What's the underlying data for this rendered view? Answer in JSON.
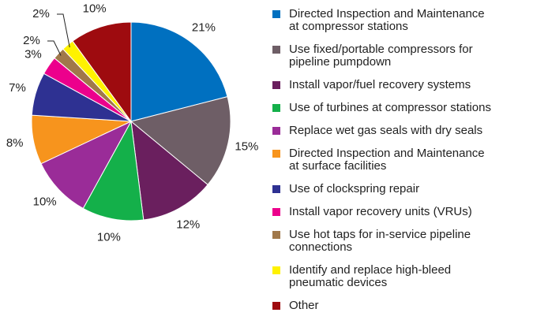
{
  "chart_data": {
    "type": "pie",
    "categories": [
      "Directed Inspection and Maintenance\nat compressor stations",
      "Use fixed/portable compressors for\npipeline pumpdown",
      "Install vapor/fuel recovery systems",
      "Use of turbines at compressor stations",
      "Replace wet gas seals with dry seals",
      "Directed Inspection and Maintenance\nat surface facilities",
      "Use of clockspring repair",
      "Install vapor recovery units (VRUs)",
      "Use hot taps for in-service pipeline\nconnections",
      "Identify and replace high-bleed\npneumatic devices",
      "Other"
    ],
    "values": [
      21,
      15,
      12,
      10,
      10,
      8,
      7,
      3,
      2,
      2,
      10
    ],
    "value_labels": [
      "21%",
      "15%",
      "12%",
      "10%",
      "10%",
      "8%",
      "7%",
      "3%",
      "2%",
      "2%",
      "10%"
    ],
    "colors": [
      "#0070c0",
      "#6e5e66",
      "#6a1f5e",
      "#14b04a",
      "#9a2c98",
      "#f7941d",
      "#2e3192",
      "#ec008c",
      "#a0784a",
      "#fff200",
      "#9e0b0f"
    ]
  }
}
